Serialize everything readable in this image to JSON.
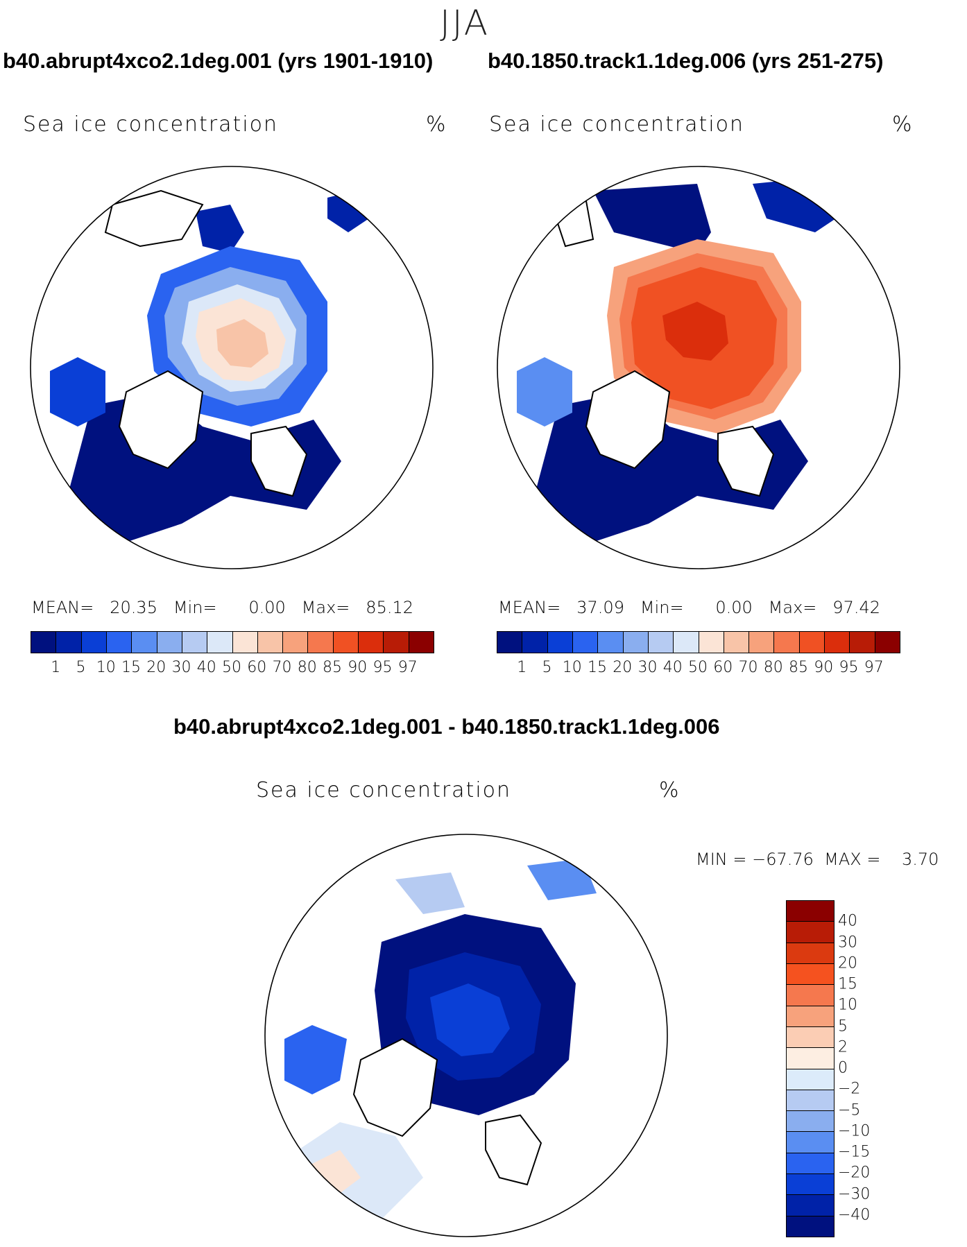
{
  "season": "JJA",
  "panels": [
    {
      "title": "b40.abrupt4xco2.1deg.001 (yrs 1901-1910)",
      "variable": "Sea ice concentration",
      "units": "%",
      "stats": {
        "mean_label": "MEAN=",
        "mean": "20.35",
        "min_label": "Min=",
        "min": "0.00",
        "max_label": "Max=",
        "max": "85.12"
      }
    },
    {
      "title": "b40.1850.track1.1deg.006 (yrs 251-275)",
      "variable": "Sea ice concentration",
      "units": "%",
      "stats": {
        "mean_label": "MEAN=",
        "mean": "37.09",
        "min_label": "Min=",
        "min": "0.00",
        "max_label": "Max=",
        "max": "97.42"
      }
    }
  ],
  "diff": {
    "title": "b40.abrupt4xco2.1deg.001 - b40.1850.track1.1deg.006",
    "variable": "Sea ice concentration",
    "units": "%",
    "minmax": "MIN = −67.76  MAX =    3.70"
  },
  "colorbar_abs": {
    "colors": [
      "#00117f",
      "#0022a8",
      "#0a3fd6",
      "#2a63f0",
      "#5a8ef2",
      "#8aaeef",
      "#b6cbf2",
      "#dce8f8",
      "#fbe4d6",
      "#f8c4a8",
      "#f7a27c",
      "#f5784e",
      "#f05123",
      "#db2e0c",
      "#b81c06",
      "#8b0000"
    ],
    "ticks": [
      "1",
      "5",
      "10",
      "15",
      "20",
      "30",
      "40",
      "50",
      "60",
      "70",
      "80",
      "85",
      "90",
      "95",
      "97"
    ]
  },
  "colorbar_diff": {
    "colors": [
      "#8b0000",
      "#b81c06",
      "#db3a10",
      "#f5521f",
      "#f5784e",
      "#f7a27c",
      "#fbcdb4",
      "#fdeee2",
      "#dcebfa",
      "#b6cbf2",
      "#8aaeef",
      "#5a8ef2",
      "#2a63f0",
      "#0a3fd6",
      "#0022a8",
      "#00117f"
    ],
    "ticks": [
      "40",
      "30",
      "20",
      "15",
      "10",
      "5",
      "2",
      "0",
      "−2",
      "−5",
      "−10",
      "−15",
      "−20",
      "−30",
      "−40"
    ]
  }
}
